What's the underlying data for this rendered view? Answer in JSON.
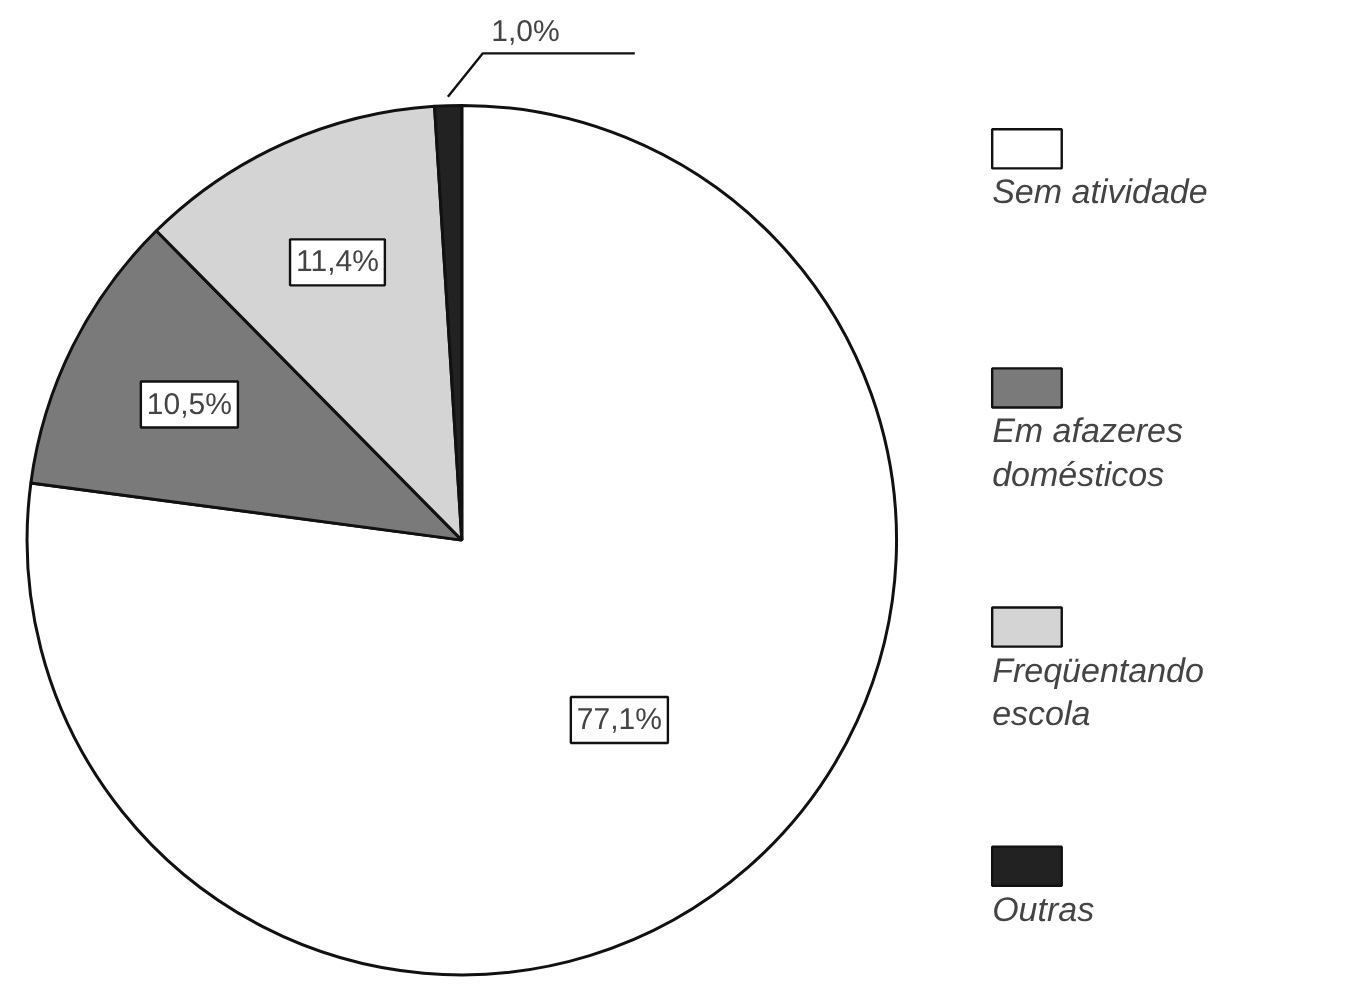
{
  "chart_data": {
    "type": "pie",
    "categories": [
      "Sem atividade",
      "Em afazeres domésticos",
      "Freqüentando escola",
      "Outras"
    ],
    "values": [
      77.1,
      10.5,
      11.4,
      1.0
    ],
    "colors": [
      "#ffffff",
      "#7a7a7a",
      "#d4d4d4",
      "#222222"
    ],
    "value_labels": [
      "77,1%",
      "10,5%",
      "11,4%",
      "1,0%"
    ],
    "legend": "right"
  }
}
